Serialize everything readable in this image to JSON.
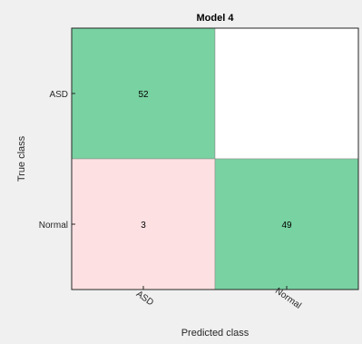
{
  "chart_data": {
    "type": "heatmap",
    "title": "Model 4",
    "xlabel": "Predicted class",
    "ylabel": "True class",
    "x_categories": [
      "ASD",
      "Normal"
    ],
    "y_categories": [
      "ASD",
      "Normal"
    ],
    "matrix": [
      [
        52,
        0
      ],
      [
        3,
        49
      ]
    ],
    "cell_labels": [
      [
        "52",
        ""
      ],
      [
        "3",
        "49"
      ]
    ],
    "grid": false,
    "colors": {
      "correct": "#78d2a1",
      "incorrect": "#fde0e1",
      "empty": "#ffffff",
      "background": "#f0f0f0",
      "axes": "#262626"
    }
  }
}
